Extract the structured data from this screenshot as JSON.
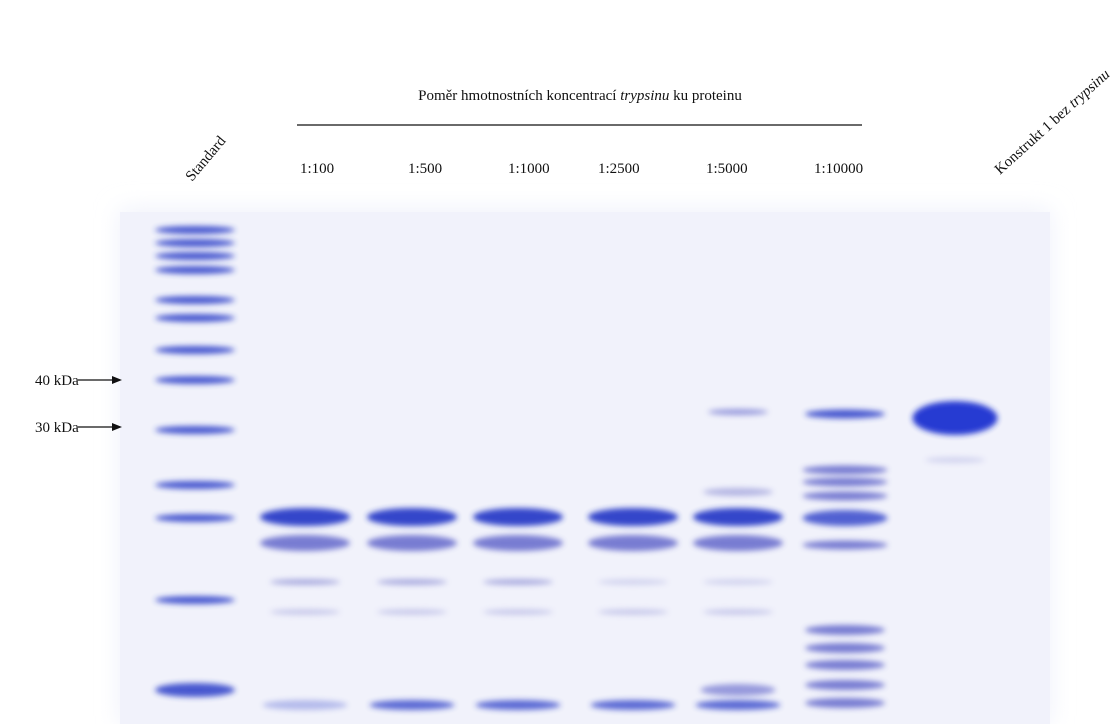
{
  "header": {
    "title_parts": [
      "Poměr hmotnostních koncentrací ",
      "trypsinu",
      " ku proteinu"
    ]
  },
  "lanes": [
    "Standard",
    "1:100",
    "1:500",
    "1:1000",
    "1:2500",
    "1:5000",
    "1:10000"
  ],
  "last_lane_parts": [
    "Konstrukt 1 bez ",
    "trypsinu"
  ],
  "markers": [
    "40 kDa",
    "30 kDa"
  ]
}
